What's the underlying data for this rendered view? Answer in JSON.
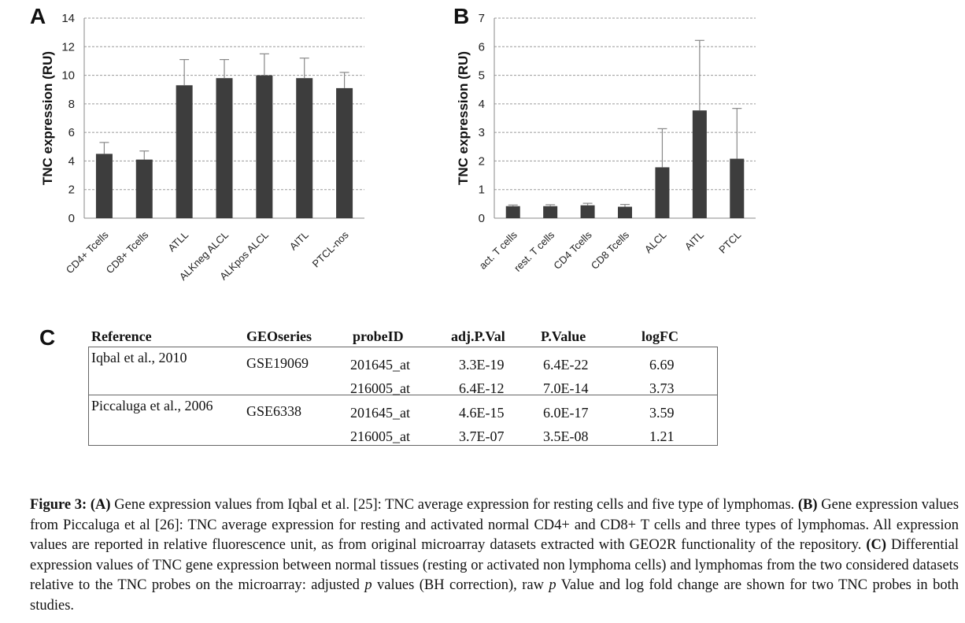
{
  "panels": {
    "a": {
      "letter": "A"
    },
    "b": {
      "letter": "B"
    },
    "c": {
      "letter": "C"
    }
  },
  "chart_data": [
    {
      "type": "bar",
      "panel": "A",
      "ylabel": "TNC expression (RU)",
      "ylim": [
        0,
        14
      ],
      "yticks": [
        0,
        2,
        4,
        6,
        8,
        10,
        12,
        14
      ],
      "grid": true,
      "categories": [
        "CD4+ Tcells",
        "CD8+ Tcells",
        "ATLL",
        "ALKneg ALCL",
        "ALKpos ALCL",
        "AITL",
        "PTCL-nos"
      ],
      "values": [
        4.5,
        4.1,
        9.3,
        9.8,
        10.0,
        9.8,
        9.1
      ],
      "error_upper": [
        5.3,
        4.7,
        11.1,
        11.1,
        11.5,
        11.2,
        10.2
      ]
    },
    {
      "type": "bar",
      "panel": "B",
      "ylabel": "TNC expression (RU)",
      "ylim": [
        0,
        7
      ],
      "yticks": [
        0,
        1,
        2,
        3,
        4,
        5,
        6,
        7
      ],
      "grid": true,
      "categories": [
        "act. T cells",
        "rest. T cells",
        "CD4 Tcells",
        "CD8 Tcells",
        "ALCL",
        "AITL",
        "PTCL"
      ],
      "values": [
        0.42,
        0.42,
        0.45,
        0.4,
        1.78,
        3.77,
        2.08
      ],
      "error_upper": [
        0.46,
        0.47,
        0.52,
        0.48,
        3.13,
        6.22,
        3.84
      ]
    }
  ],
  "table": {
    "headers": [
      "Reference",
      "GEOseries",
      "probeID",
      "adj.P.Val",
      "P.Value",
      "logFC"
    ],
    "groups": [
      {
        "reference": "Iqbal et al., 2010",
        "geoseries": "GSE19069",
        "rows": [
          {
            "probe": "201645_at",
            "adjp": "3.3E-19",
            "p": "6.4E-22",
            "logfc": "6.69"
          },
          {
            "probe": "216005_at",
            "adjp": "6.4E-12",
            "p": "7.0E-14",
            "logfc": "3.73"
          }
        ]
      },
      {
        "reference": "Piccaluga et al., 2006",
        "geoseries": "GSE6338",
        "rows": [
          {
            "probe": "201645_at",
            "adjp": "4.6E-15",
            "p": "6.0E-17",
            "logfc": "3.59"
          },
          {
            "probe": "216005_at",
            "adjp": "3.7E-07",
            "p": "3.5E-08",
            "logfc": "1.21"
          }
        ]
      }
    ]
  },
  "caption": {
    "fig": "Figure 3:",
    "a_tag": "(A)",
    "a_text": " Gene expression values from Iqbal et al. [25]: TNC average expression for resting cells and five type of lymphomas. ",
    "b_tag": "(B)",
    "b_text": " Gene expression values from Piccaluga et al [26]: TNC average expression for resting and activated normal CD4+ and CD8+ T cells and three types of lymphomas. All expression values are reported in relative fluorescence unit, as from original microarray datasets extracted with GEO2R functionality of the repository. ",
    "c_tag": "(C)",
    "c_text1": " Differential expression values of TNC gene expression between normal tissues (resting or activated non lymphoma cells) and lymphomas from the two considered datasets relative to the TNC probes on the microarray: adjusted ",
    "p1": "p",
    "c_text2": " values (BH correction), raw ",
    "p2": "p",
    "c_text3": " Value and log fold change are shown for two TNC probes in both studies."
  }
}
